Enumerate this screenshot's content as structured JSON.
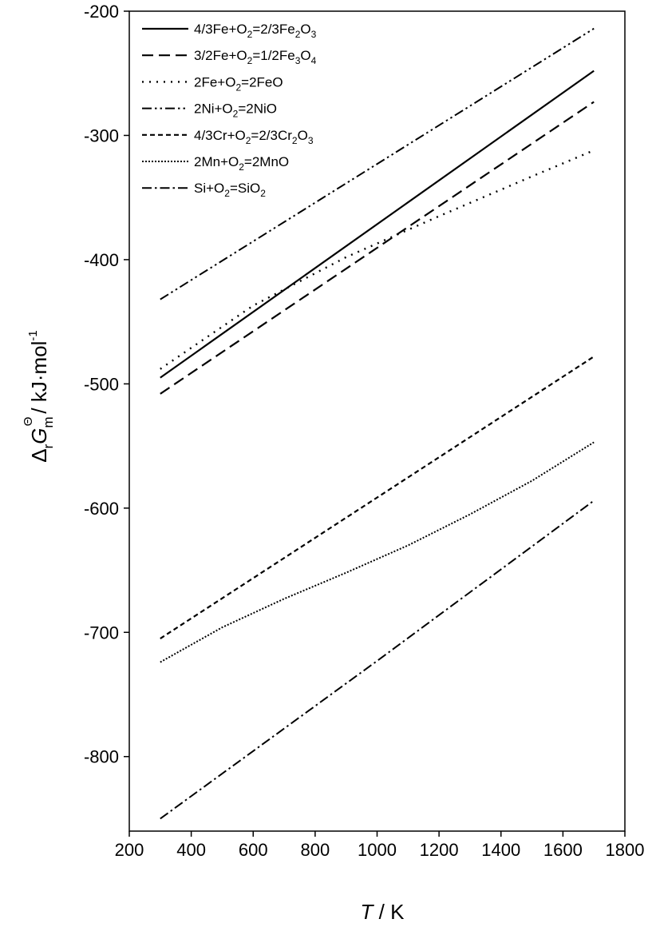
{
  "chart_data": {
    "type": "line",
    "title": "",
    "xlabel": {
      "var": "T",
      "unit": " / K"
    },
    "ylabel": {
      "delta": "Δ",
      "sub_r": "r",
      "G": "G",
      "sub_m": "m",
      "sup": "Θ",
      "unit": "/ kJ·mol",
      "unit_sup": "-1"
    },
    "xlim": [
      200,
      1800
    ],
    "ylim": [
      -860,
      -200
    ],
    "xticks": [
      "200",
      "400",
      "600",
      "800",
      "1000",
      "1200",
      "1400",
      "1600",
      "1800"
    ],
    "yticks": [
      "-200",
      "-300",
      "-400",
      "-500",
      "-600",
      "-700",
      "-800"
    ],
    "grid": false,
    "legend_position": "top-left",
    "series": [
      {
        "name": [
          "4/3Fe+O",
          "2",
          "=2/3Fe",
          "2",
          "O",
          "3"
        ],
        "style": "solid",
        "x": [
          300,
          1700
        ],
        "y": [
          -495,
          -248
        ]
      },
      {
        "name": [
          "3/2Fe+O",
          "2",
          "=1/2Fe",
          "3",
          "O",
          "4"
        ],
        "style": "dash",
        "x": [
          300,
          1700
        ],
        "y": [
          -508,
          -273
        ]
      },
      {
        "name": [
          "2Fe+O",
          "2",
          "=2FeO"
        ],
        "style": "dot",
        "x": [
          300,
          600,
          900,
          1200,
          1500,
          1700
        ],
        "y": [
          -488,
          -437,
          -398,
          -365,
          -333,
          -312
        ]
      },
      {
        "name": [
          "2Ni+O",
          "2",
          "=2NiO"
        ],
        "style": "dashdotdot",
        "x": [
          300,
          1700
        ],
        "y": [
          -432,
          -214
        ]
      },
      {
        "name": [
          "4/3Cr+O",
          "2",
          "=2/3Cr",
          "2",
          "O",
          "3"
        ],
        "style": "shortdash",
        "x": [
          300,
          1700
        ],
        "y": [
          -705,
          -478
        ]
      },
      {
        "name": [
          "2Mn+O",
          "2",
          "=2MnO"
        ],
        "style": "densedot",
        "x": [
          300,
          500,
          700,
          900,
          1100,
          1300,
          1500,
          1700
        ],
        "y": [
          -724,
          -696,
          -673,
          -652,
          -630,
          -605,
          -578,
          -547
        ]
      },
      {
        "name": [
          "Si+O",
          "2",
          "=SiO",
          "2"
        ],
        "style": "dashdot",
        "x": [
          300,
          1000,
          1700
        ],
        "y": [
          -850,
          -723,
          -594
        ]
      }
    ]
  }
}
